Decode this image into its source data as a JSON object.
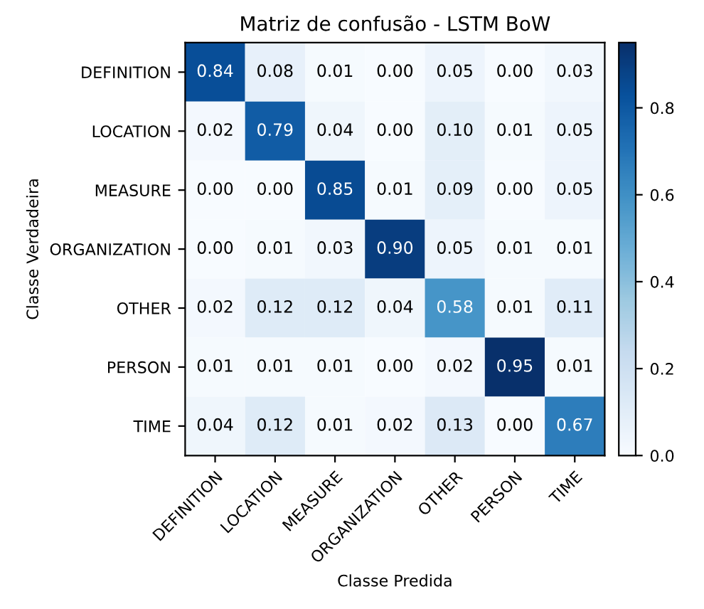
{
  "chart_data": {
    "type": "heatmap",
    "title": "Matriz de confusão - LSTM BoW",
    "xlabel": "Classe Predida",
    "ylabel": "Classe Verdadeira",
    "categories": [
      "DEFINITION",
      "LOCATION",
      "MEASURE",
      "ORGANIZATION",
      "OTHER",
      "PERSON",
      "TIME"
    ],
    "y_categories": [
      "DEFINITION",
      "LOCATION",
      "MEASURE",
      "ORGANIZATION",
      "OTHER",
      "PERSON",
      "TIME"
    ],
    "cells": [
      [
        0.84,
        0.08,
        0.01,
        0.0,
        0.05,
        0.0,
        0.03
      ],
      [
        0.02,
        0.79,
        0.04,
        0.0,
        0.1,
        0.01,
        0.05
      ],
      [
        0.0,
        0.0,
        0.85,
        0.01,
        0.09,
        0.0,
        0.05
      ],
      [
        0.0,
        0.01,
        0.03,
        0.9,
        0.05,
        0.01,
        0.01
      ],
      [
        0.02,
        0.12,
        0.12,
        0.04,
        0.58,
        0.01,
        0.11
      ],
      [
        0.01,
        0.01,
        0.01,
        0.0,
        0.02,
        0.95,
        0.01
      ],
      [
        0.04,
        0.12,
        0.01,
        0.02,
        0.13,
        0.0,
        0.67
      ]
    ],
    "cell_labels": [
      [
        "0.84",
        "0.08",
        "0.01",
        "0.00",
        "0.05",
        "0.00",
        "0.03"
      ],
      [
        "0.02",
        "0.79",
        "0.04",
        "0.00",
        "0.10",
        "0.01",
        "0.05"
      ],
      [
        "0.00",
        "0.00",
        "0.85",
        "0.01",
        "0.09",
        "0.00",
        "0.05"
      ],
      [
        "0.00",
        "0.01",
        "0.03",
        "0.90",
        "0.05",
        "0.01",
        "0.01"
      ],
      [
        "0.02",
        "0.12",
        "0.12",
        "0.04",
        "0.58",
        "0.01",
        "0.11"
      ],
      [
        "0.01",
        "0.01",
        "0.01",
        "0.00",
        "0.02",
        "0.95",
        "0.01"
      ],
      [
        "0.04",
        "0.12",
        "0.01",
        "0.02",
        "0.13",
        "0.00",
        "0.67"
      ]
    ],
    "clim": [
      0,
      0.95
    ],
    "cticks": [
      {
        "value": 0,
        "label": "0.0"
      },
      {
        "value": 0.2,
        "label": "0.2"
      },
      {
        "value": 0.4,
        "label": "0.4"
      },
      {
        "value": 0.6,
        "label": "0.6"
      },
      {
        "value": 0.8,
        "label": "0.8"
      }
    ],
    "grid": false
  }
}
